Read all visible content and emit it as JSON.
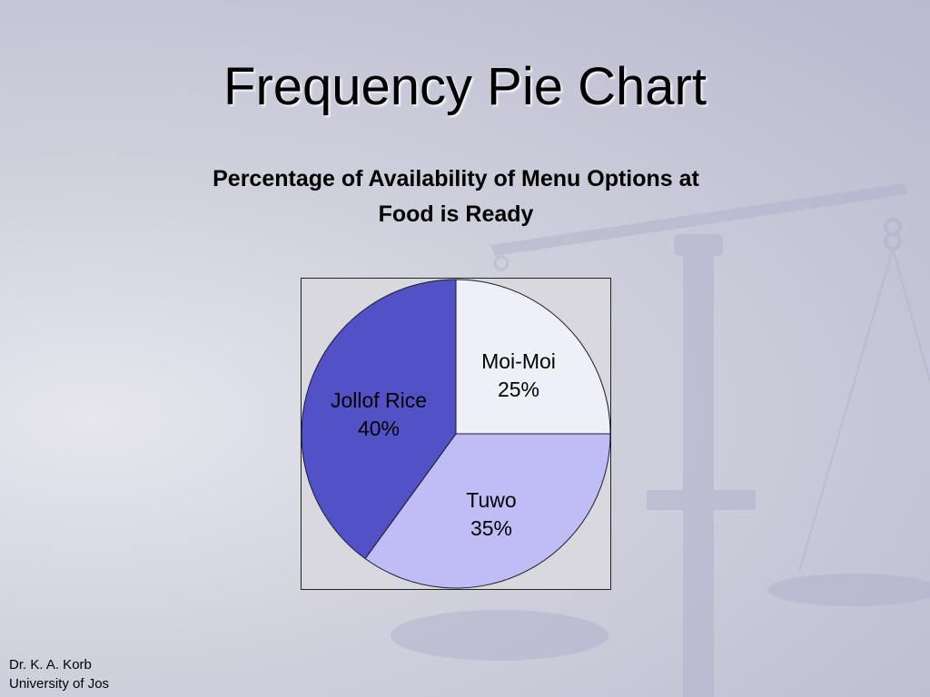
{
  "slide": {
    "title": "Frequency Pie Chart"
  },
  "footer": {
    "author": "Dr. K. A. Korb",
    "institution": "University of Jos"
  },
  "chart_data": {
    "type": "pie",
    "title": "Percentage of Availability of Menu Options at Food is Ready",
    "title_lines": [
      "Percentage of Availability of Menu Options at",
      "Food is Ready"
    ],
    "slices": [
      {
        "label": "Moi-Moi",
        "value": 25,
        "value_label": "25%",
        "color": "#efeff7"
      },
      {
        "label": "Tuwo",
        "value": 35,
        "value_label": "35%",
        "color": "#c0bdf6"
      },
      {
        "label": "Jollof Rice",
        "value": 40,
        "value_label": "40%",
        "color": "#5252c6"
      }
    ],
    "start": "12 o'clock, clockwise"
  }
}
